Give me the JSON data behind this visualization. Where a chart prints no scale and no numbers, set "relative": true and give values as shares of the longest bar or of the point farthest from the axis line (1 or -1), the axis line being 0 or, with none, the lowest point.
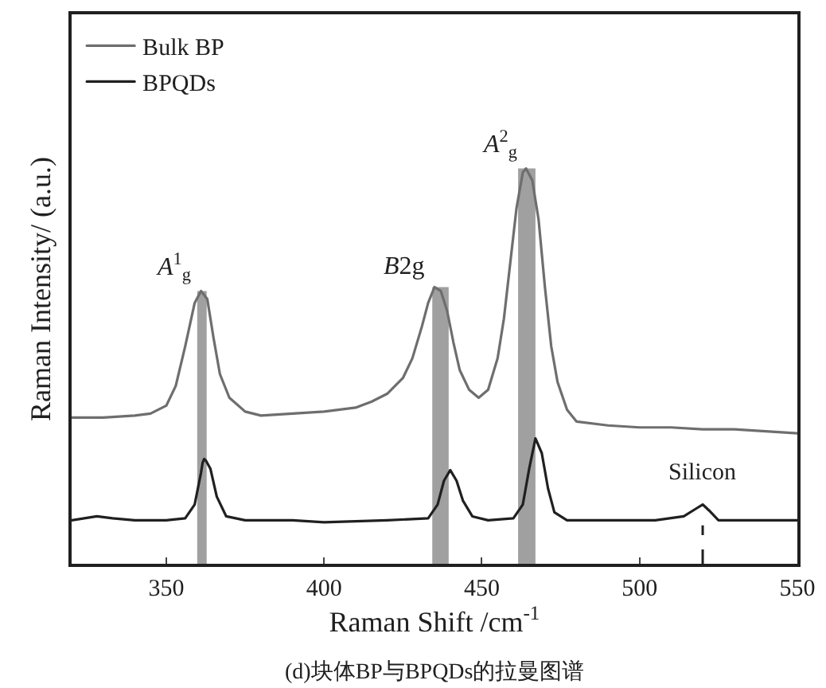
{
  "chart_data": {
    "type": "line",
    "relative": true,
    "xlabel": "Raman Shift /cm$^{-1}$",
    "ylabel": "Raman Intensity/ (a.u.)",
    "xlim": [
      320,
      550
    ],
    "xticks": [
      350,
      400,
      450,
      500,
      550
    ],
    "legend": "top left",
    "grid": false,
    "marker": "none",
    "line_style": "solid",
    "series": [
      {
        "name": "Bulk BP",
        "color": "#6e6e6e",
        "x": [
          320,
          330,
          340,
          345,
          350,
          353,
          356,
          359,
          361,
          363,
          365,
          367,
          370,
          375,
          380,
          390,
          400,
          410,
          415,
          420,
          425,
          428,
          431,
          433,
          435,
          437,
          439,
          441,
          443,
          446,
          449,
          452,
          455,
          457,
          459,
          461,
          463,
          464,
          466,
          468,
          470,
          472,
          474,
          477,
          480,
          490,
          500,
          510,
          520,
          530,
          540,
          550
        ],
        "values": [
          0.37,
          0.37,
          0.375,
          0.38,
          0.4,
          0.45,
          0.55,
          0.66,
          0.69,
          0.67,
          0.57,
          0.48,
          0.42,
          0.385,
          0.375,
          0.38,
          0.385,
          0.395,
          0.41,
          0.43,
          0.47,
          0.52,
          0.6,
          0.66,
          0.7,
          0.69,
          0.64,
          0.56,
          0.49,
          0.44,
          0.42,
          0.44,
          0.52,
          0.62,
          0.76,
          0.9,
          0.99,
          1.0,
          0.97,
          0.87,
          0.7,
          0.55,
          0.46,
          0.39,
          0.36,
          0.35,
          0.345,
          0.345,
          0.34,
          0.34,
          0.335,
          0.33
        ]
      },
      {
        "name": "BPQDs",
        "color": "#202020",
        "x": [
          320,
          328,
          333,
          340,
          350,
          356,
          359,
          361,
          361.5,
          362,
          362.5,
          364,
          366,
          369,
          375,
          390,
          400,
          420,
          433,
          436,
          438,
          440,
          442,
          444,
          447,
          452,
          460,
          463,
          465,
          467,
          469,
          471,
          473,
          477,
          490,
          505,
          514,
          518,
          520,
          522,
          525,
          535,
          550
        ],
        "values": [
          0.11,
          0.12,
          0.115,
          0.11,
          0.11,
          0.115,
          0.15,
          0.23,
          0.255,
          0.265,
          0.262,
          0.24,
          0.17,
          0.12,
          0.11,
          0.11,
          0.105,
          0.11,
          0.115,
          0.15,
          0.21,
          0.237,
          0.21,
          0.16,
          0.12,
          0.11,
          0.115,
          0.15,
          0.24,
          0.317,
          0.28,
          0.19,
          0.13,
          0.11,
          0.11,
          0.11,
          0.12,
          0.14,
          0.15,
          0.135,
          0.11,
          0.11,
          0.11
        ]
      }
    ],
    "bands": [
      {
        "axis": "x",
        "from": 359.8,
        "to": 362.8,
        "color": "#a0a0a0"
      },
      {
        "axis": "x",
        "from": 434.3,
        "to": 439.5,
        "color": "#a0a0a0"
      },
      {
        "axis": "x",
        "from": 461.5,
        "to": 467,
        "color": "#a0a0a0"
      }
    ],
    "ref_lines": [
      {
        "axis": "x",
        "value": 520,
        "label": "Silicon",
        "color": "#202020",
        "line_style": "dashed"
      }
    ],
    "annotations": [
      {
        "text": "A$^{1}$$_{g}$",
        "x": 361,
        "y": 0.69
      },
      {
        "text": "B2g",
        "x": 435,
        "y": 0.7
      },
      {
        "text": "A$^{2}$$_{g}$",
        "x": 464,
        "y": 1.0
      },
      "(d)块体BP与BPQDs的拉曼图谱"
    ]
  }
}
